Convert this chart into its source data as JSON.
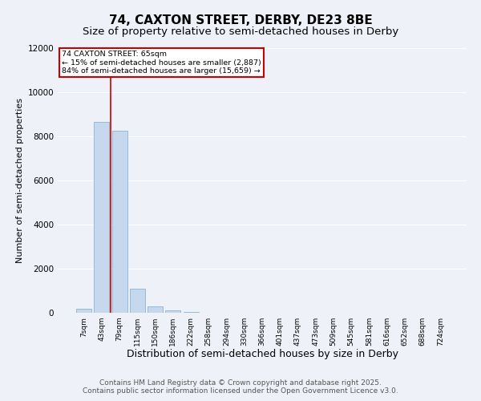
{
  "title": "74, CAXTON STREET, DERBY, DE23 8BE",
  "subtitle": "Size of property relative to semi-detached houses in Derby",
  "xlabel": "Distribution of semi-detached houses by size in Derby",
  "ylabel": "Number of semi-detached properties",
  "categories": [
    "7sqm",
    "43sqm",
    "79sqm",
    "115sqm",
    "150sqm",
    "186sqm",
    "222sqm",
    "258sqm",
    "294sqm",
    "330sqm",
    "366sqm",
    "401sqm",
    "437sqm",
    "473sqm",
    "509sqm",
    "545sqm",
    "581sqm",
    "616sqm",
    "652sqm",
    "688sqm",
    "724sqm"
  ],
  "values": [
    200,
    8650,
    8250,
    1100,
    280,
    100,
    30,
    5,
    5,
    5,
    5,
    5,
    5,
    5,
    5,
    5,
    5,
    5,
    5,
    5,
    5
  ],
  "bar_color": "#c5d8ee",
  "bar_edge_color": "#8ab4d4",
  "property_line_x": 1.5,
  "annotation_title": "74 CAXTON STREET: 65sqm",
  "annotation_line1": "← 15% of semi-detached houses are smaller (2,887)",
  "annotation_line2": "84% of semi-detached houses are larger (15,659) →",
  "annotation_box_color": "#ffffff",
  "annotation_box_edge_color": "#cc0000",
  "line_color": "#cc0000",
  "ylim": [
    0,
    12000
  ],
  "yticks": [
    0,
    2000,
    4000,
    6000,
    8000,
    10000,
    12000
  ],
  "background_color": "#eef2f8",
  "grid_color": "#ffffff",
  "footer": "Contains HM Land Registry data © Crown copyright and database right 2025.\nContains public sector information licensed under the Open Government Licence v3.0.",
  "title_fontsize": 11,
  "subtitle_fontsize": 9.5,
  "xlabel_fontsize": 9,
  "ylabel_fontsize": 8,
  "footer_fontsize": 6.5
}
